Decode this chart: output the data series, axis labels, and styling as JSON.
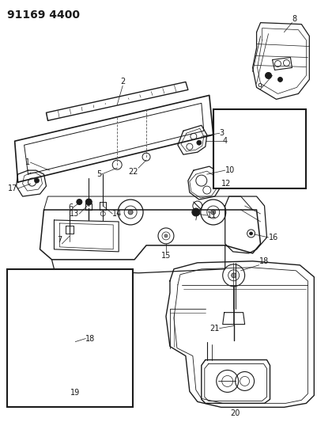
{
  "title": "91169 4400",
  "title_fontsize": 10,
  "title_fontweight": "bold",
  "bg_color": "#ffffff",
  "line_color": "#1a1a1a",
  "fig_width": 4.01,
  "fig_height": 5.33,
  "dpi": 100
}
